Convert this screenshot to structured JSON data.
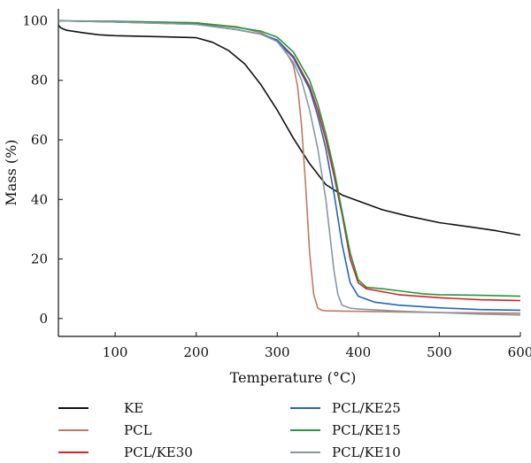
{
  "chart_data": {
    "type": "line",
    "title": "",
    "xlabel": "Temperature (°C)",
    "ylabel": "Mass (%)",
    "xlim": [
      30,
      600
    ],
    "ylim": [
      -6,
      104
    ],
    "xticks": [
      "100",
      "200",
      "300",
      "400",
      "500",
      "600"
    ],
    "yticks": [
      "0",
      "20",
      "40",
      "60",
      "80",
      "100"
    ],
    "legend_position": "bottom",
    "series": [
      {
        "name": "KE",
        "color": "#111111",
        "x": [
          30,
          33,
          40,
          60,
          80,
          100,
          130,
          160,
          200,
          220,
          240,
          260,
          280,
          300,
          320,
          340,
          360,
          380,
          400,
          430,
          460,
          500,
          540,
          570,
          600
        ],
        "y": [
          98.5,
          97.6,
          96.8,
          96.0,
          95.3,
          95.0,
          94.8,
          94.6,
          94.3,
          92.8,
          90.0,
          85.5,
          78.5,
          70.0,
          60.5,
          52.0,
          45.0,
          41.5,
          39.5,
          36.5,
          34.5,
          32.2,
          30.7,
          29.5,
          28.0
        ]
      },
      {
        "name": "PCL",
        "color": "#c07a5e",
        "x": [
          30,
          100,
          200,
          250,
          280,
          300,
          310,
          320,
          325,
          330,
          335,
          340,
          345,
          350,
          355,
          360,
          380,
          400,
          500,
          600
        ],
        "y": [
          100,
          99.8,
          99.3,
          98.0,
          96.0,
          93.0,
          90.0,
          85.0,
          78.0,
          65.0,
          45.0,
          22.0,
          8.0,
          3.5,
          2.8,
          2.6,
          2.5,
          2.4,
          2.0,
          1.8
        ]
      },
      {
        "name": "PCL/KE30",
        "color": "#d42424",
        "x": [
          30,
          100,
          200,
          250,
          280,
          300,
          320,
          340,
          350,
          360,
          370,
          380,
          390,
          400,
          410,
          430,
          450,
          500,
          550,
          600
        ],
        "y": [
          100,
          99.6,
          99.0,
          97.0,
          95.5,
          93.5,
          88.0,
          78.0,
          70.0,
          60.0,
          48.0,
          35.0,
          20.0,
          12.0,
          10.0,
          9.0,
          8.0,
          7.0,
          6.3,
          6.0
        ]
      },
      {
        "name": "PCL/KE25",
        "color": "#1f66c0",
        "x": [
          30,
          100,
          200,
          250,
          280,
          300,
          320,
          340,
          350,
          360,
          370,
          380,
          390,
          400,
          420,
          450,
          500,
          550,
          600
        ],
        "y": [
          100,
          99.6,
          98.8,
          97.0,
          95.5,
          93.5,
          87.5,
          77.0,
          68.0,
          57.0,
          42.0,
          25.0,
          12.0,
          7.5,
          5.5,
          4.5,
          3.6,
          3.0,
          2.8
        ]
      },
      {
        "name": "PCL/KE15",
        "color": "#1e9a3a",
        "x": [
          30,
          100,
          200,
          250,
          280,
          300,
          320,
          340,
          350,
          360,
          370,
          380,
          390,
          400,
          410,
          430,
          450,
          480,
          500,
          550,
          600
        ],
        "y": [
          100,
          99.8,
          99.3,
          97.8,
          96.5,
          94.5,
          89.5,
          80.0,
          72.0,
          62.0,
          50.0,
          36.0,
          22.0,
          13.0,
          10.5,
          10.0,
          9.3,
          8.3,
          8.0,
          7.8,
          7.5
        ]
      },
      {
        "name": "PCL/KE10",
        "color": "#8a96a6",
        "x": [
          30,
          100,
          200,
          250,
          280,
          300,
          320,
          330,
          340,
          350,
          360,
          365,
          370,
          375,
          380,
          390,
          400,
          450,
          500,
          550,
          600
        ],
        "y": [
          100,
          99.6,
          98.8,
          97.0,
          95.5,
          93.0,
          86.0,
          80.0,
          70.0,
          57.0,
          40.0,
          28.0,
          16.0,
          8.0,
          4.5,
          3.5,
          3.2,
          2.5,
          2.0,
          1.5,
          1.2
        ]
      }
    ]
  }
}
